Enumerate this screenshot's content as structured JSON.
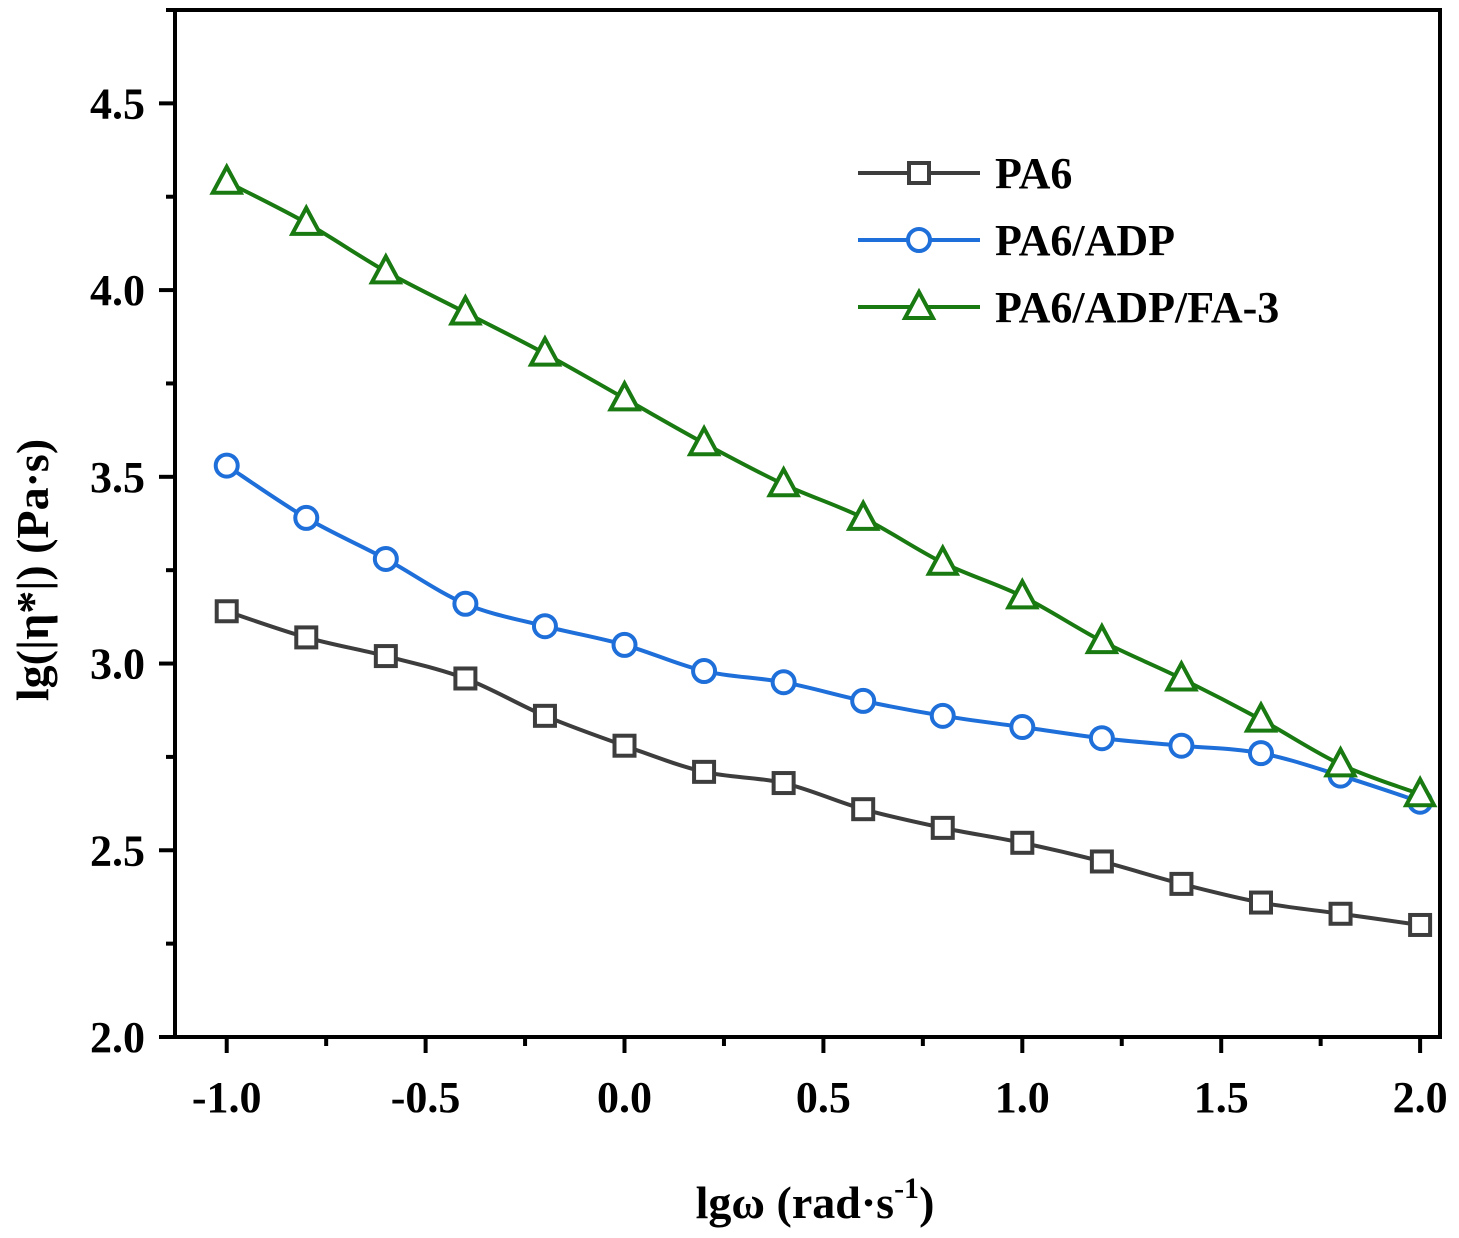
{
  "chart_data": {
    "type": "line",
    "title": "",
    "xlabel": "lgω (rad·s",
    "xlabel_sup": "-1",
    "xlabel_close": ")",
    "ylabel": "lg(|η*|) (Pa·s)",
    "xlim": [
      -1.13,
      2.05
    ],
    "ylim": [
      2.0,
      4.75
    ],
    "xticks": [
      -1.0,
      -0.5,
      0.0,
      0.5,
      1.0,
      1.5,
      2.0
    ],
    "xtick_labels": [
      "-1.0",
      "-0.5",
      "0.0",
      "0.5",
      "1.0",
      "1.5",
      "2.0"
    ],
    "xticks_minor": [
      -0.75,
      -0.25,
      0.25,
      0.75,
      1.25,
      1.75
    ],
    "yticks": [
      2.0,
      2.5,
      3.0,
      3.5,
      4.0,
      4.5
    ],
    "ytick_labels": [
      "2.0",
      "2.5",
      "3.0",
      "3.5",
      "4.0",
      "4.5"
    ],
    "yticks_minor": [
      2.25,
      2.75,
      3.25,
      3.75,
      4.25,
      4.75
    ],
    "grid": false,
    "legend_position": "top-right",
    "x": [
      -1.0,
      -0.8,
      -0.6,
      -0.4,
      -0.2,
      0.0,
      0.2,
      0.4,
      0.6,
      0.8,
      1.0,
      1.2,
      1.4,
      1.6,
      1.8,
      2.0
    ],
    "series": [
      {
        "name": "PA6",
        "color": "#3d3d3d",
        "marker": "square",
        "values": [
          3.14,
          3.07,
          3.02,
          2.96,
          2.86,
          2.78,
          2.71,
          2.68,
          2.61,
          2.56,
          2.52,
          2.47,
          2.41,
          2.36,
          2.33,
          2.3
        ]
      },
      {
        "name": "PA6/ADP",
        "color": "#1e6fd9",
        "marker": "circle",
        "values": [
          3.53,
          3.39,
          3.28,
          3.16,
          3.1,
          3.05,
          2.98,
          2.95,
          2.9,
          2.86,
          2.83,
          2.8,
          2.78,
          2.76,
          2.7,
          2.63
        ]
      },
      {
        "name": "PA6/ADP/FA-3",
        "color": "#1a7a12",
        "marker": "triangle",
        "values": [
          4.29,
          4.18,
          4.05,
          3.94,
          3.83,
          3.71,
          3.59,
          3.48,
          3.39,
          3.27,
          3.18,
          3.06,
          2.96,
          2.85,
          2.73,
          2.65
        ]
      }
    ]
  }
}
